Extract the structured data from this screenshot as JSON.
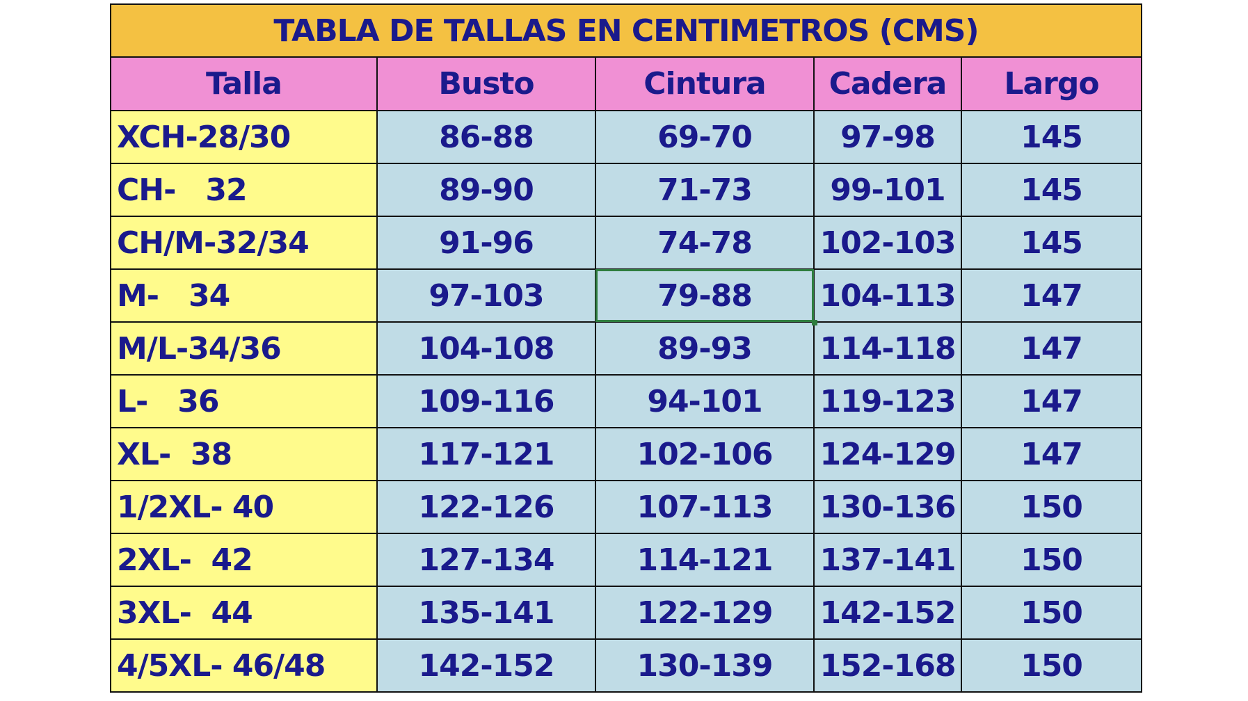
{
  "title": "TABLA DE TALLAS EN CENTIMETROS (CMS)",
  "headers": [
    "Talla",
    "Busto",
    "Cintura",
    "Cadera",
    "Largo"
  ],
  "rows": [
    [
      "XCH-28/30",
      "86-88",
      "69-70",
      "97-98",
      "145"
    ],
    [
      "CH-   32",
      "89-90",
      "71-73",
      "99-101",
      "145"
    ],
    [
      "CH/M-32/34",
      "91-96",
      "74-78",
      "102-103",
      "145"
    ],
    [
      "M-   34",
      "97-103",
      "79-88",
      "104-113",
      "147"
    ],
    [
      "M/L-34/36",
      "104-108",
      "89-93",
      "114-118",
      "147"
    ],
    [
      "L-   36",
      "109-116",
      "94-101",
      "119-123",
      "147"
    ],
    [
      "XL-  38",
      "117-121",
      "102-106",
      "124-129",
      "147"
    ],
    [
      "1/2XL- 40",
      "122-126",
      "107-113",
      "130-136",
      "150"
    ],
    [
      "2XL-  42",
      "127-134",
      "114-121",
      "137-141",
      "150"
    ],
    [
      "3XL-  44",
      "135-141",
      "122-129",
      "142-152",
      "150"
    ],
    [
      "4/5XL- 46/48",
      "142-152",
      "130-139",
      "152-168",
      "150"
    ]
  ],
  "colors": {
    "title_bg": "#f4c142",
    "header_bg": "#f090d4",
    "size_bg": "#fffb8c",
    "value_bg": "#c0dce6",
    "text": "#1a1a8c",
    "selection": "#2e7d3e"
  }
}
